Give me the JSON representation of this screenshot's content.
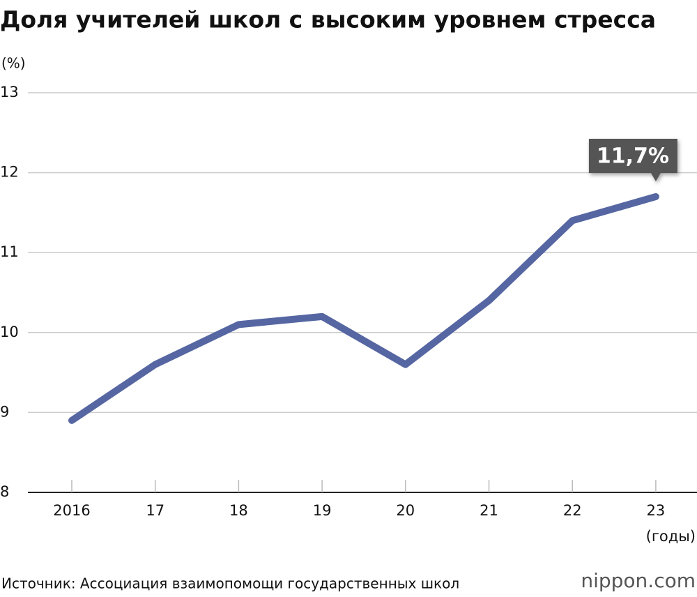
{
  "chart_data": {
    "type": "line",
    "title": "Доля учителей школ с высоким уровнем стресса",
    "y_unit": "(%)",
    "x_unit": "(годы)",
    "categories": [
      "2016",
      "17",
      "18",
      "19",
      "20",
      "21",
      "22",
      "23"
    ],
    "series": [
      {
        "color": "#5566a2",
        "values": [
          8.9,
          9.6,
          10.1,
          10.2,
          9.6,
          10.4,
          11.4,
          11.7
        ],
        "value_labels": [
          null,
          null,
          null,
          null,
          null,
          null,
          null,
          "11,7%"
        ]
      }
    ],
    "ylim": [
      8,
      13
    ],
    "yticks": [
      8,
      9,
      10,
      11,
      12,
      13
    ],
    "grid": true,
    "source": "Источник: Ассоциация взаимопомощи государственных школ",
    "logo": "nippon.com"
  }
}
